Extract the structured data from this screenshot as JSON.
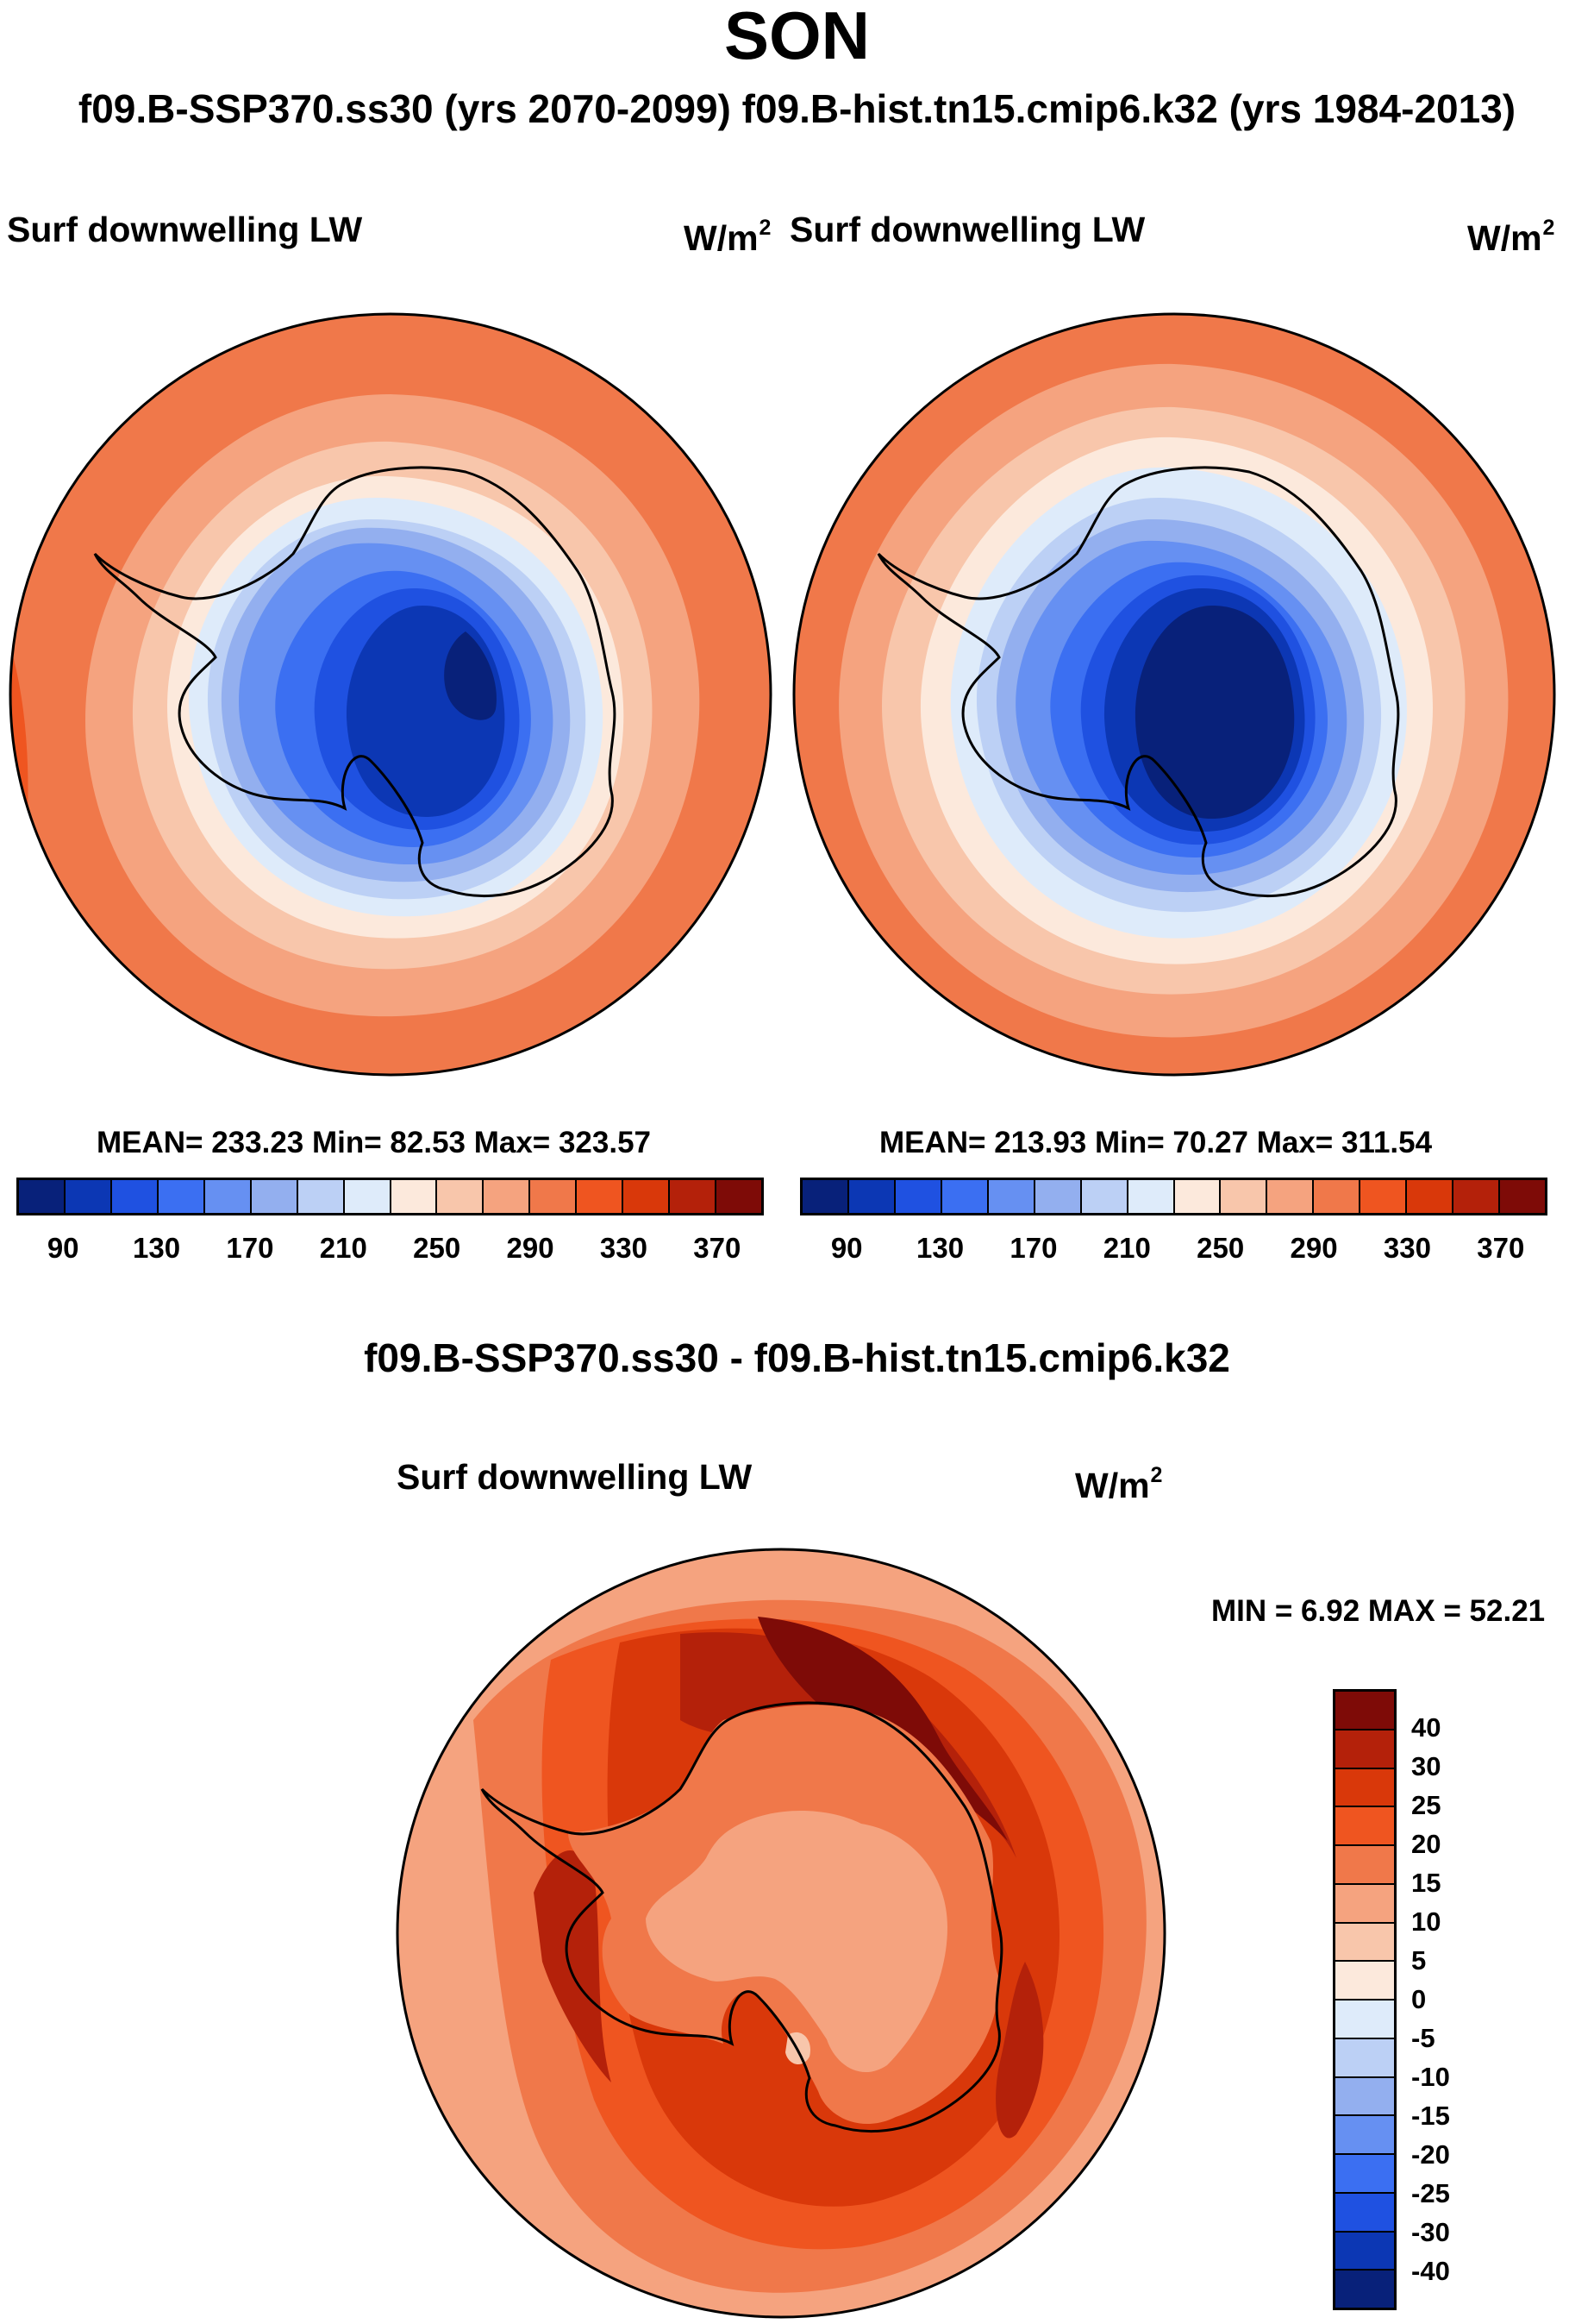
{
  "title": "SON",
  "subtitle": "f09.B-SSP370.ss30 (yrs 2070-2099)  f09.B-hist.tn15.cmip6.k32 (yrs 1984-2013)",
  "diff_title": "f09.B-SSP370.ss30 - f09.B-hist.tn15.cmip6.k32",
  "colors": {
    "abs": [
      "#08217a",
      "#0c37b4",
      "#1f51e1",
      "#3b6ff2",
      "#6690f2",
      "#93afef",
      "#bcd0f5",
      "#deebfa",
      "#fce9dc",
      "#f8c6ab",
      "#f5a37f",
      "#f0784a",
      "#ef5520",
      "#d9380a",
      "#b4210a",
      "#7e0b07"
    ],
    "diff": [
      "#7e0b07",
      "#b4210a",
      "#d9380a",
      "#ef5520",
      "#f0784a",
      "#f5a37f",
      "#f8c6ab",
      "#fce9dc",
      "#deebfa",
      "#bcd0f5",
      "#93afef",
      "#6690f2",
      "#3b6ff2",
      "#1f51e1",
      "#0c37b4",
      "#08217a"
    ]
  },
  "chart_data": [
    {
      "type": "heatmap",
      "panel": "left",
      "variable": "Surf downwelling LW",
      "units": "W/m",
      "units_sup": "2",
      "stats": "MEAN= 233.23  Min=  82.53  Max= 323.57",
      "mean": 233.23,
      "min": 82.53,
      "max": 323.57,
      "colorbar_ticks": [
        "90",
        "130",
        "170",
        "210",
        "250",
        "290",
        "330",
        "370"
      ],
      "colorbar_levels": [
        80,
        90,
        100,
        110,
        120,
        130,
        140,
        150,
        160,
        170,
        180,
        190,
        200,
        210,
        220,
        230,
        240,
        250,
        260,
        270,
        280,
        290,
        300,
        310,
        320,
        330,
        340,
        350,
        360,
        370,
        380
      ]
    },
    {
      "type": "heatmap",
      "panel": "right",
      "variable": "Surf downwelling LW",
      "units": "W/m",
      "units_sup": "2",
      "stats": "MEAN= 213.93  Min=  70.27  Max= 311.54",
      "mean": 213.93,
      "min": 70.27,
      "max": 311.54,
      "colorbar_ticks": [
        "90",
        "130",
        "170",
        "210",
        "250",
        "290",
        "330",
        "370"
      ]
    },
    {
      "type": "heatmap",
      "panel": "difference",
      "variable": "Surf downwelling LW",
      "units": "W/m",
      "units_sup": "2",
      "stats": "MIN =   6.92 MAX =  52.21",
      "min": 6.92,
      "max": 52.21,
      "colorbar_ticks": [
        "40",
        "30",
        "25",
        "20",
        "15",
        "10",
        "5",
        "0",
        "-5",
        "-10",
        "-15",
        "-20",
        "-25",
        "-30",
        "-40"
      ]
    }
  ]
}
